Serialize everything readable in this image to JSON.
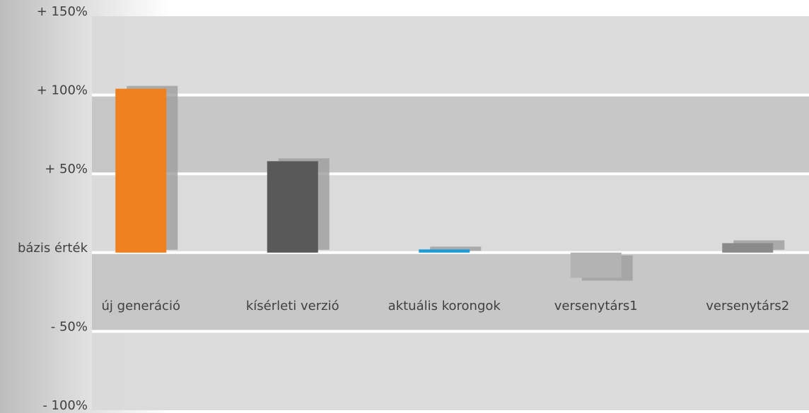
{
  "chart_data": {
    "type": "bar",
    "categories": [
      "új generáció",
      "kísérleti verzió",
      "aktuális korongok",
      "versenytárs1",
      "versenytárs2"
    ],
    "values": [
      104,
      58,
      2,
      -16,
      6
    ],
    "colors": [
      "#ef7f1f",
      "#595959",
      "#1a9bd7",
      "#b3b3b3",
      "#8a8a8a"
    ],
    "ylim": [
      -100,
      150
    ],
    "yticks": [
      {
        "value": -100,
        "label": "- 100%"
      },
      {
        "value": -50,
        "label": "- 50%"
      },
      {
        "value": 0,
        "label": "bázis érték"
      },
      {
        "value": 50,
        "label": "+ 50%"
      },
      {
        "value": 100,
        "label": "+ 100%"
      },
      {
        "value": 150,
        "label": "+ 150%"
      }
    ],
    "grid": true
  }
}
